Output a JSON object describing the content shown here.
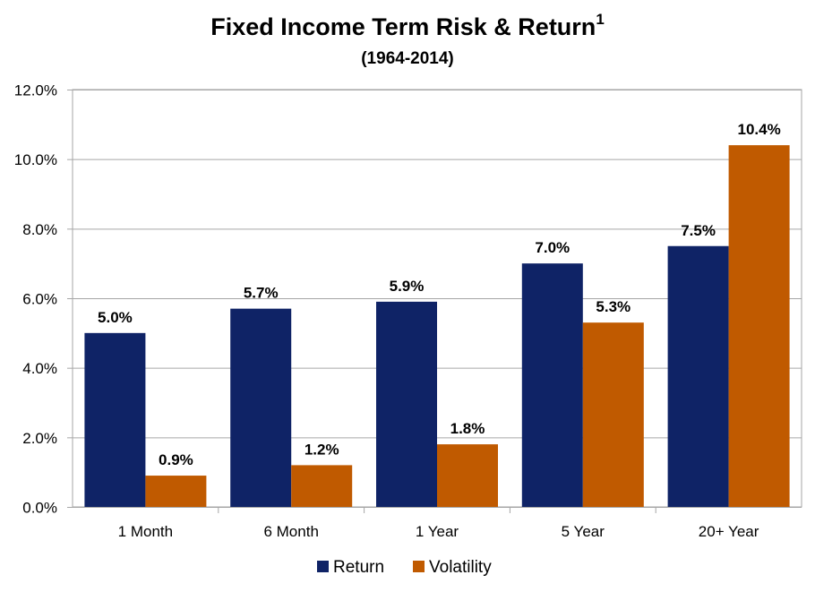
{
  "chart_data": {
    "type": "bar",
    "title": "Fixed Income Term Risk & Return",
    "title_superscript": "1",
    "subtitle": "(1964-2014)",
    "categories": [
      "1 Month",
      "6 Month",
      "1 Year",
      "5 Year",
      "20+ Year"
    ],
    "series": [
      {
        "name": "Return",
        "color": "#0F2366",
        "values": [
          5.0,
          5.7,
          5.9,
          7.0,
          7.5
        ],
        "labels": [
          "5.0%",
          "5.7%",
          "5.9%",
          "7.0%",
          "7.5%"
        ]
      },
      {
        "name": "Volatility",
        "color": "#C05A00",
        "values": [
          0.9,
          1.2,
          1.8,
          5.3,
          10.4
        ],
        "labels": [
          "0.9%",
          "1.2%",
          "1.8%",
          "5.3%",
          "10.4%"
        ]
      }
    ],
    "ylim": [
      0,
      12
    ],
    "yticks": [
      0,
      2,
      4,
      6,
      8,
      10,
      12
    ],
    "ytick_labels": [
      "0.0%",
      "2.0%",
      "4.0%",
      "6.0%",
      "8.0%",
      "10.0%",
      "12.0%"
    ],
    "xlabel": "",
    "ylabel": "",
    "grid": true,
    "legend_position": "bottom"
  }
}
